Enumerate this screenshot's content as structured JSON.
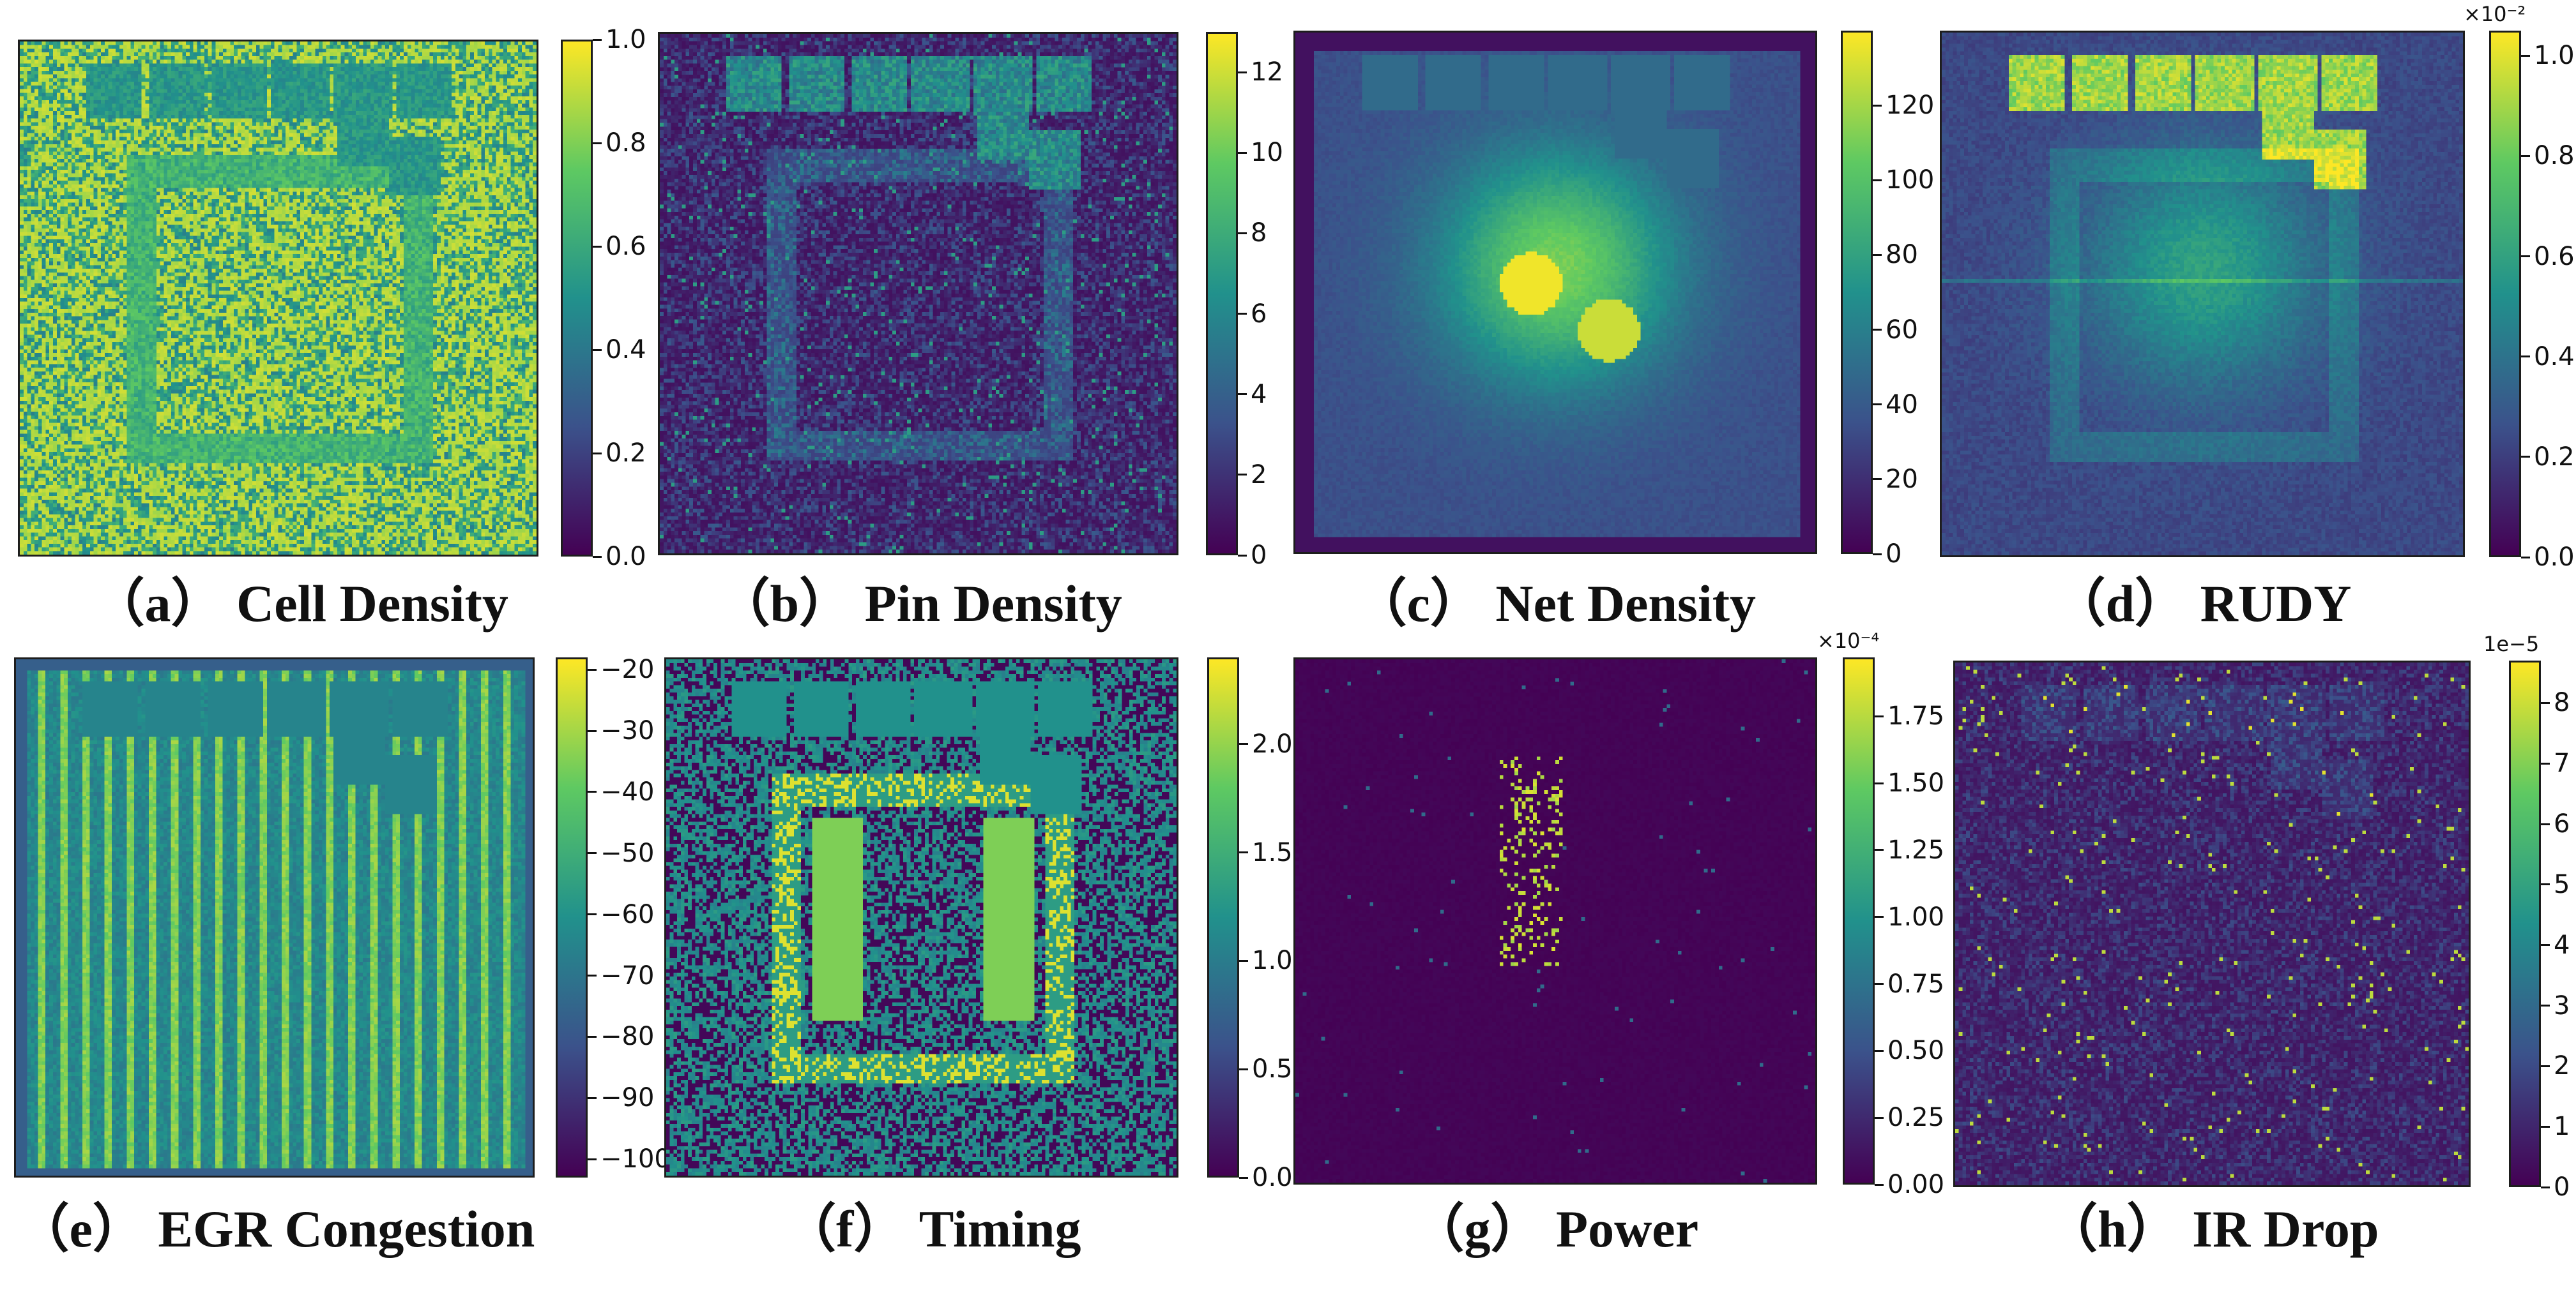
{
  "colormap": [
    "#440154",
    "#3b528b",
    "#21918c",
    "#5ec962",
    "#fde725"
  ],
  "chart_data": [
    {
      "type": "heatmap",
      "caption": "（a） Cell Density",
      "colorbar": {
        "ticks": [
          "0.0",
          "0.2",
          "0.4",
          "0.6",
          "0.8",
          "1.0"
        ],
        "range": [
          0,
          1.0
        ],
        "multiplier": ""
      }
    },
    {
      "type": "heatmap",
      "caption": "（b） Pin Density",
      "colorbar": {
        "ticks": [
          "0",
          "2",
          "4",
          "6",
          "8",
          "10",
          "12"
        ],
        "range": [
          0,
          13
        ],
        "multiplier": ""
      }
    },
    {
      "type": "heatmap",
      "caption": "（c） Net Density",
      "colorbar": {
        "ticks": [
          "0",
          "20",
          "40",
          "60",
          "80",
          "100",
          "120"
        ],
        "range": [
          0,
          140
        ],
        "multiplier": ""
      }
    },
    {
      "type": "heatmap",
      "caption": "（d） RUDY",
      "colorbar": {
        "ticks": [
          "0.0",
          "0.2",
          "0.4",
          "0.6",
          "0.8",
          "1.0"
        ],
        "range": [
          0,
          1.05
        ],
        "multiplier": "×10⁻²"
      }
    },
    {
      "type": "heatmap",
      "caption": "（e） EGR Congestion",
      "colorbar": {
        "ticks": [
          "−100",
          "−90",
          "−80",
          "−70",
          "−60",
          "−50",
          "−40",
          "−30",
          "−20"
        ],
        "range": [
          -103,
          -18
        ],
        "multiplier": ""
      }
    },
    {
      "type": "heatmap",
      "caption": "（f） Timing",
      "colorbar": {
        "ticks": [
          "0.0",
          "0.5",
          "1.0",
          "1.5",
          "2.0"
        ],
        "range": [
          0,
          2.4
        ],
        "multiplier": ""
      }
    },
    {
      "type": "heatmap",
      "caption": "（g） Power",
      "colorbar": {
        "ticks": [
          "0.00",
          "0.25",
          "0.50",
          "0.75",
          "1.00",
          "1.25",
          "1.50",
          "1.75"
        ],
        "range": [
          0,
          1.97
        ],
        "multiplier": "×10⁻⁴"
      }
    },
    {
      "type": "heatmap",
      "caption": "（h） IR Drop",
      "colorbar": {
        "ticks": [
          "0",
          "1",
          "2",
          "3",
          "4",
          "5",
          "6",
          "7",
          "8"
        ],
        "range": [
          0,
          8.7
        ],
        "multiplier": "1e−5"
      }
    }
  ]
}
